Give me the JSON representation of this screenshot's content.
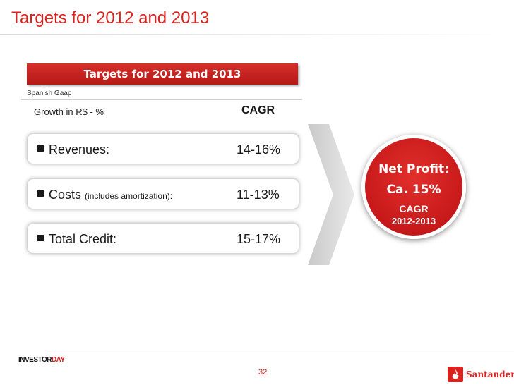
{
  "page": {
    "title": "Targets for 2012 and 2013"
  },
  "panel": {
    "banner": "Targets for 2012 and 2013",
    "subnote": "Spanish Gaap",
    "growth_label": "Growth in R$ - %",
    "cagr_header": "CAGR"
  },
  "metrics": [
    {
      "label": "Revenues:",
      "note": "",
      "value": "14-16%"
    },
    {
      "label": "Costs",
      "note": "(includes amortization):",
      "value": "11-13%"
    },
    {
      "label": "Total Credit:",
      "note": "",
      "value": "15-17%"
    }
  ],
  "highlight": {
    "line1": "Net Profit:",
    "line2": "Ca. 15%",
    "line3": "CAGR",
    "line4": "2012-2013"
  },
  "footer": {
    "event_logo_prefix": "INVESTOR",
    "event_logo_suffix": "DAY",
    "page_number": "32",
    "brand": "Santander"
  },
  "colors": {
    "accent_red": "#d9231f",
    "text_dark": "#1a1a1a"
  },
  "icons": [
    "bullet-square-icon",
    "chevron-arrow-icon",
    "flame-logo-icon"
  ]
}
